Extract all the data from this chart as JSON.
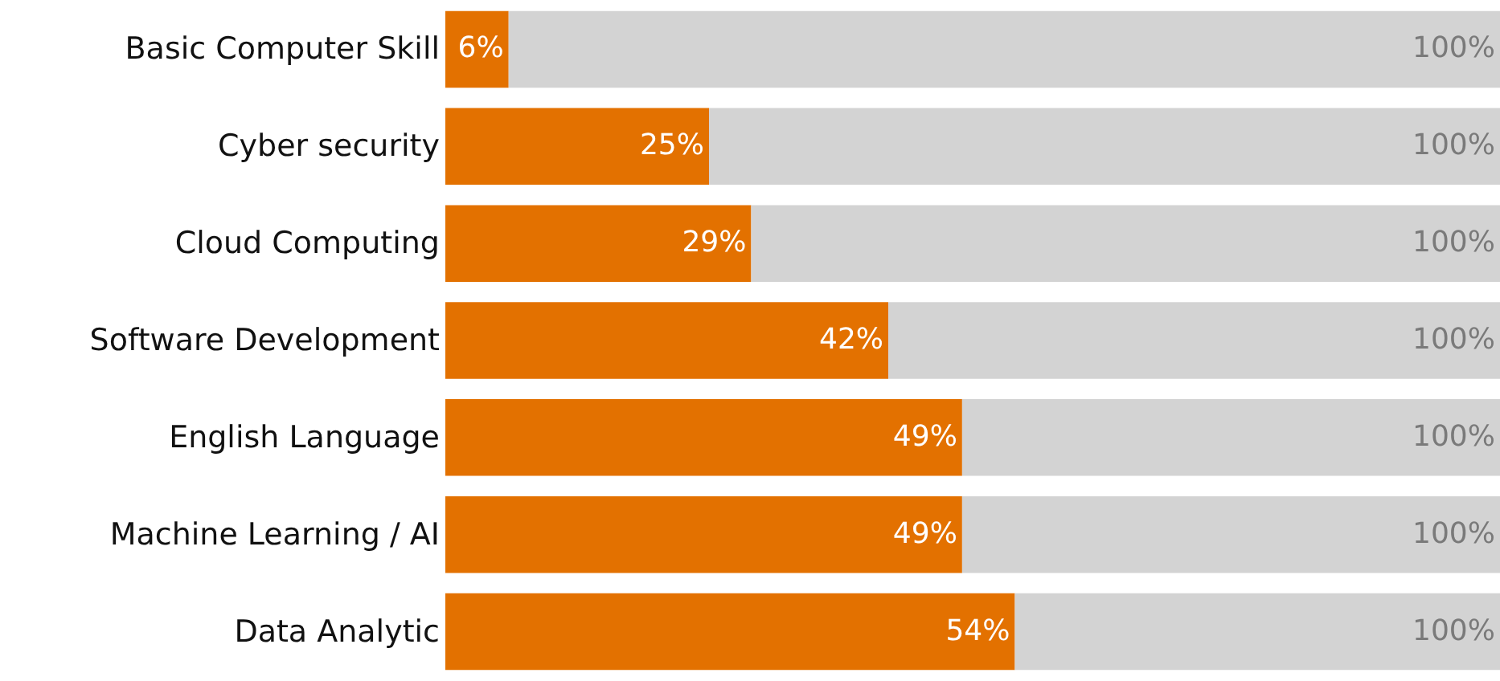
{
  "chart_data": {
    "type": "bar",
    "orientation": "horizontal",
    "stacked": true,
    "categories": [
      "Basic Computer Skill",
      "Cyber security",
      "Cloud Computing",
      "Software Development",
      "English Language",
      "Machine Learning / AI",
      "Data Analytic"
    ],
    "series": [
      {
        "color": "#e37100",
        "values": [
          6,
          25,
          29,
          42,
          49,
          49,
          54
        ],
        "value_labels": [
          "6%",
          "25%",
          "29%",
          "42%",
          "49%",
          "49%",
          "54%"
        ]
      },
      {
        "color": "#d3d3d3",
        "values": [
          94,
          75,
          71,
          58,
          51,
          51,
          46
        ]
      }
    ],
    "totals": [
      "100%",
      "100%",
      "100%",
      "100%",
      "100%",
      "100%",
      "100%"
    ],
    "xlim": [
      0,
      100
    ]
  }
}
